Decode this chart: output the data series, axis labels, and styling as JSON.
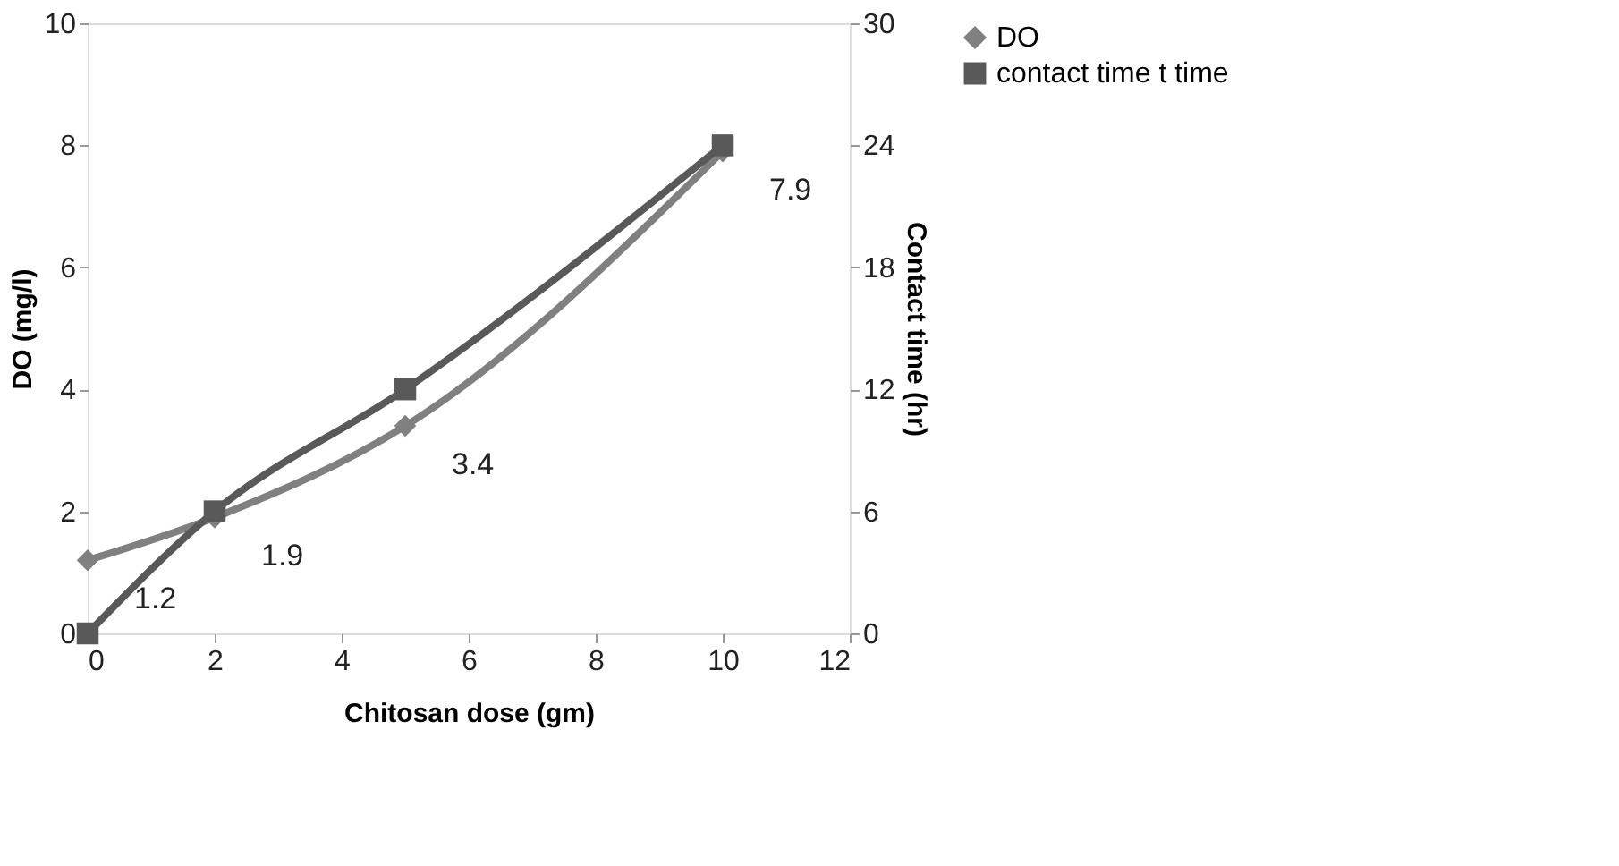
{
  "chart_data": {
    "type": "line",
    "xlabel": "Chitosan dose (gm)",
    "ylabel": "DO (mg/l)",
    "y2label": "Contact time (hr)",
    "x": [
      0,
      2,
      5,
      10
    ],
    "series": [
      {
        "name": "DO",
        "color": "#808080",
        "values": [
          1.2,
          1.9,
          3.4,
          7.9
        ],
        "marker": "diamond",
        "value_labels": [
          "1.2",
          "1.9",
          "3.4",
          "7.9"
        ]
      },
      {
        "name": "contact time  t time",
        "color": "#595959",
        "values": [
          0,
          6,
          12,
          24
        ],
        "marker": "square",
        "axis": "y2"
      }
    ],
    "xlim": [
      0,
      12
    ],
    "xticks": [
      0,
      2,
      4,
      6,
      8,
      10,
      12
    ],
    "ylim": [
      0,
      10
    ],
    "yticks": [
      0,
      2,
      4,
      6,
      8,
      10
    ],
    "y2lim": [
      0,
      30
    ],
    "y2ticks": [
      0,
      6,
      12,
      18,
      24,
      30
    ],
    "grid": false,
    "legend": "right"
  }
}
